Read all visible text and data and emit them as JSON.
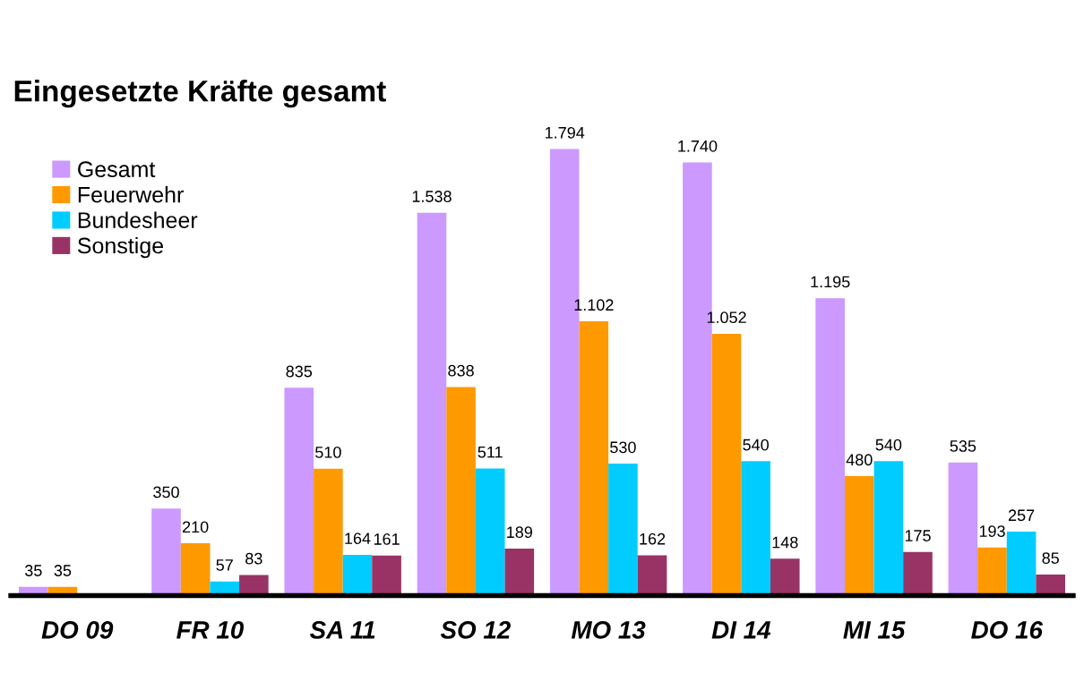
{
  "chart_data": {
    "type": "bar",
    "title": "Eingesetzte Kräfte gesamt",
    "categories": [
      "DO 09",
      "FR 10",
      "SA 11",
      "SO 12",
      "MO 13",
      "DI 14",
      "MI 15",
      "DO 16"
    ],
    "series": [
      {
        "name": "Gesamt",
        "color": "#cc99ff",
        "values": [
          35,
          350,
          835,
          1538,
          1794,
          1740,
          1195,
          535
        ],
        "value_labels": [
          "35",
          "350",
          "835",
          "1.538",
          "1.794",
          "1.740",
          "1.195",
          "535"
        ]
      },
      {
        "name": "Feuerwehr",
        "color": "#ff9900",
        "values": [
          35,
          210,
          510,
          838,
          1102,
          1052,
          480,
          193
        ],
        "value_labels": [
          "35",
          "210",
          "510",
          "838",
          "1.102",
          "1.052",
          "480",
          "193"
        ]
      },
      {
        "name": "Bundesheer",
        "color": "#00ccff",
        "values": [
          null,
          57,
          164,
          511,
          530,
          540,
          540,
          257
        ],
        "value_labels": [
          null,
          "57",
          "164",
          "511",
          "530",
          "540",
          "540",
          "257"
        ]
      },
      {
        "name": "Sonstige",
        "color": "#993366",
        "values": [
          null,
          83,
          161,
          189,
          162,
          148,
          175,
          85
        ],
        "value_labels": [
          null,
          "83",
          "161",
          "189",
          "162",
          "148",
          "175",
          "85"
        ]
      }
    ],
    "legend": "top left",
    "grid": false
  }
}
